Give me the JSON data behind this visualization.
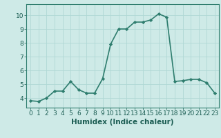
{
  "x": [
    0,
    1,
    2,
    3,
    4,
    5,
    6,
    7,
    8,
    9,
    10,
    11,
    12,
    13,
    14,
    15,
    16,
    17,
    18,
    19,
    20,
    21,
    22,
    23
  ],
  "y": [
    3.8,
    3.75,
    4.0,
    4.5,
    4.5,
    5.2,
    4.6,
    4.35,
    4.35,
    5.4,
    7.9,
    9.0,
    9.0,
    9.5,
    9.5,
    9.65,
    10.1,
    9.85,
    5.2,
    5.25,
    5.35,
    5.35,
    5.1,
    4.35
  ],
  "line_color": "#2e7d6e",
  "marker": "D",
  "marker_size": 2.2,
  "linewidth": 1.2,
  "background_color": "#ceeae7",
  "grid_color": "#b0d8d4",
  "xlabel": "Humidex (Indice chaleur)",
  "xlabel_fontsize": 7.5,
  "tick_fontsize": 6.5,
  "xlim": [
    -0.5,
    23.5
  ],
  "ylim": [
    3.3,
    10.8
  ],
  "yticks": [
    4,
    5,
    6,
    7,
    8,
    9,
    10
  ],
  "xticks": [
    0,
    1,
    2,
    3,
    4,
    5,
    6,
    7,
    8,
    9,
    10,
    11,
    12,
    13,
    14,
    15,
    16,
    17,
    18,
    19,
    20,
    21,
    22,
    23
  ]
}
